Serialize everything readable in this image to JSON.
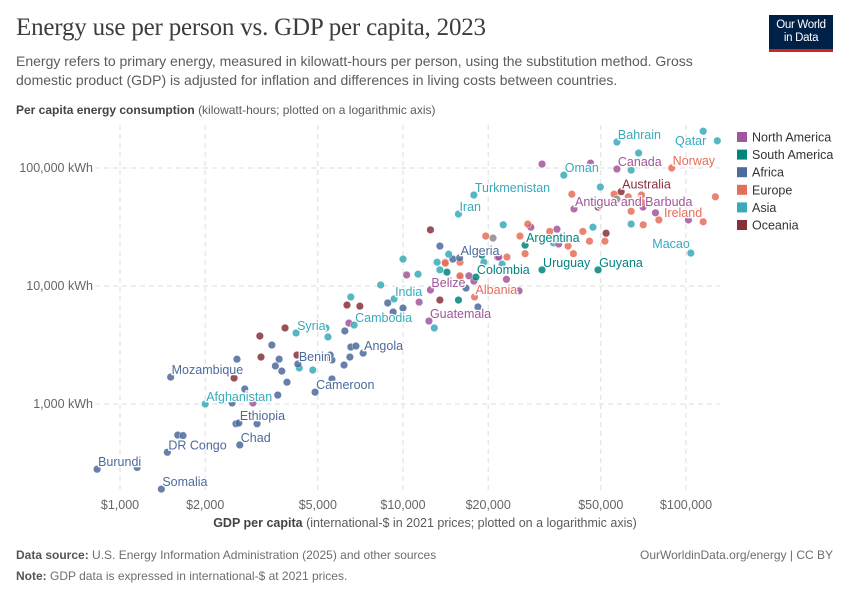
{
  "header": {
    "title": "Energy use per person vs. GDP per capita, 2023",
    "subtitle": "Energy refers to primary energy, measured in kilowatt-hours per person, using the substitution method. Gross domestic product (GDP) is adjusted for inflation and differences in living costs between countries.",
    "logo_text": "Our World in Data"
  },
  "footer": {
    "source_label": "Data source:",
    "source": "U.S. Energy Information Administration (2025) and other sources",
    "note_label": "Note:",
    "note": "GDP data is expressed in international-$ at 2021 prices.",
    "credit": "OurWorldinData.org/energy | CC BY"
  },
  "chart_data": {
    "type": "scatter",
    "title": "Energy use per person vs. GDP per capita, 2023",
    "ylabel_bold": "Per capita energy consumption",
    "ylabel_rest": "(kilowatt-hours; plotted on a logarithmic axis)",
    "xlabel_bold": "GDP per capita",
    "xlabel_rest": "(international-$ in 2021 prices; plotted on a logarithmic axis)",
    "x_scale": "log",
    "y_scale": "log",
    "xlim": [
      740,
      135000
    ],
    "ylim": [
      175,
      240000
    ],
    "x_ticks": [
      {
        "v": 1000,
        "t": "$1,000"
      },
      {
        "v": 2000,
        "t": "$2,000"
      },
      {
        "v": 5000,
        "t": "$5,000"
      },
      {
        "v": 10000,
        "t": "$10,000"
      },
      {
        "v": 20000,
        "t": "$20,000"
      },
      {
        "v": 50000,
        "t": "$50,000"
      },
      {
        "v": 100000,
        "t": "$100,000"
      }
    ],
    "y_ticks": [
      {
        "v": 1000,
        "t": "1,000 kWh"
      },
      {
        "v": 10000,
        "t": "10,000 kWh"
      },
      {
        "v": 100000,
        "t": "100,000 kWh"
      }
    ],
    "grid": true,
    "legend_position": "right",
    "legend": [
      {
        "name": "North America",
        "color": "#a2559c"
      },
      {
        "name": "South America",
        "color": "#00847e"
      },
      {
        "name": "Africa",
        "color": "#4c6a9c"
      },
      {
        "name": "Europe",
        "color": "#e56e5a"
      },
      {
        "name": "Asia",
        "color": "#38aaba"
      },
      {
        "name": "Oceania",
        "color": "#883039"
      }
    ],
    "other_color": "#8c8c8c",
    "points": [
      {
        "label": "Burundi",
        "region": "Africa",
        "gdp": 830,
        "energy": 280
      },
      {
        "label": "Somalia",
        "region": "Africa",
        "gdp": 1400,
        "energy": 190
      },
      {
        "label": "DR Congo",
        "region": "Africa",
        "gdp": 1470,
        "energy": 390
      },
      {
        "label": "Chad",
        "region": "Africa",
        "gdp": 2650,
        "energy": 450
      },
      {
        "label": "Ethiopia",
        "region": "Africa",
        "gdp": 2630,
        "energy": 690
      },
      {
        "label": "Afghanistan",
        "region": "Asia",
        "gdp": 2000,
        "energy": 1000
      },
      {
        "label": "Mozambique",
        "region": "Africa",
        "gdp": 1510,
        "energy": 1690
      },
      {
        "label": "Benin",
        "region": "Africa",
        "gdp": 4250,
        "energy": 2180
      },
      {
        "label": "Cameroon",
        "region": "Africa",
        "gdp": 4890,
        "energy": 1260
      },
      {
        "label": "Angola",
        "region": "Africa",
        "gdp": 7230,
        "energy": 2700
      },
      {
        "label": "Syria",
        "region": "Asia",
        "gdp": 4190,
        "energy": 4000
      },
      {
        "label": "Cambodia",
        "region": "Asia",
        "gdp": 6720,
        "energy": 4670
      },
      {
        "label": "India",
        "region": "Asia",
        "gdp": 9300,
        "energy": 7770
      },
      {
        "label": "Guatemala",
        "region": "North America",
        "gdp": 12350,
        "energy": 5050
      },
      {
        "label": "Belize",
        "region": "North America",
        "gdp": 12500,
        "energy": 9250
      },
      {
        "label": "Albania",
        "region": "Europe",
        "gdp": 17900,
        "energy": 8070
      },
      {
        "label": "Colombia",
        "region": "South America",
        "gdp": 18100,
        "energy": 11900
      },
      {
        "label": "Algeria",
        "region": "Africa",
        "gdp": 15850,
        "energy": 17300
      },
      {
        "label": "Iran",
        "region": "Asia",
        "gdp": 15700,
        "energy": 40700
      },
      {
        "label": "Turkmenistan",
        "region": "Asia",
        "gdp": 17800,
        "energy": 59000
      },
      {
        "label": "Argentina",
        "region": "South America",
        "gdp": 27000,
        "energy": 22200
      },
      {
        "label": "Uruguay",
        "region": "South America",
        "gdp": 31000,
        "energy": 13700
      },
      {
        "label": "Guyana",
        "region": "South America",
        "gdp": 48900,
        "energy": 13700
      },
      {
        "label": "Antigua and Barbuda",
        "region": "North America",
        "gdp": 40200,
        "energy": 45000
      },
      {
        "label": "Oman",
        "region": "Asia",
        "gdp": 37000,
        "energy": 87000
      },
      {
        "label": "Bahrain",
        "region": "Asia",
        "gdp": 57000,
        "energy": 166000
      },
      {
        "label": "Qatar",
        "region": "Asia",
        "gdp": 129000,
        "energy": 170000
      },
      {
        "label": "Canada",
        "region": "North America",
        "gdp": 57000,
        "energy": 98000
      },
      {
        "label": "Norway",
        "region": "Europe",
        "gdp": 89000,
        "energy": 100000
      },
      {
        "label": "Australia",
        "region": "Oceania",
        "gdp": 59000,
        "energy": 63000
      },
      {
        "label": "Ireland",
        "region": "Europe",
        "gdp": 115000,
        "energy": 35000
      },
      {
        "label": "Macao",
        "region": "Asia",
        "gdp": 104000,
        "energy": 19000
      },
      {
        "region": "Asia",
        "gdp": 115000,
        "energy": 205000
      },
      {
        "region": "Africa",
        "gdp": 1150,
        "energy": 290
      },
      {
        "region": "Africa",
        "gdp": 1600,
        "energy": 545
      },
      {
        "region": "Africa",
        "gdp": 1670,
        "energy": 540
      },
      {
        "region": "Africa",
        "gdp": 2570,
        "energy": 680
      },
      {
        "region": "Africa",
        "gdp": 2590,
        "energy": 2400
      },
      {
        "region": "Africa",
        "gdp": 3440,
        "energy": 3160
      },
      {
        "region": "Africa",
        "gdp": 3540,
        "energy": 2100
      },
      {
        "region": "Africa",
        "gdp": 3730,
        "energy": 1900
      },
      {
        "region": "Africa",
        "gdp": 3890,
        "energy": 1530
      },
      {
        "region": "Africa",
        "gdp": 3650,
        "energy": 2400
      },
      {
        "region": "Africa",
        "gdp": 3610,
        "energy": 1190
      },
      {
        "region": "Africa",
        "gdp": 2490,
        "energy": 1020
      },
      {
        "region": "Africa",
        "gdp": 2760,
        "energy": 1340
      },
      {
        "region": "Africa",
        "gdp": 3050,
        "energy": 680
      },
      {
        "region": "Africa",
        "gdp": 6230,
        "energy": 4160
      },
      {
        "region": "Africa",
        "gdp": 6540,
        "energy": 3040
      },
      {
        "region": "Africa",
        "gdp": 6820,
        "energy": 3100
      },
      {
        "region": "Africa",
        "gdp": 6490,
        "energy": 2500
      },
      {
        "region": "Africa",
        "gdp": 6190,
        "energy": 2140
      },
      {
        "region": "Africa",
        "gdp": 5610,
        "energy": 2360
      },
      {
        "region": "Africa",
        "gdp": 5530,
        "energy": 2600
      },
      {
        "region": "Africa",
        "gdp": 5610,
        "energy": 1630
      },
      {
        "region": "Africa",
        "gdp": 8830,
        "energy": 7180
      },
      {
        "region": "Africa",
        "gdp": 9230,
        "energy": 6020
      },
      {
        "region": "Africa",
        "gdp": 10000,
        "energy": 6500
      },
      {
        "region": "Africa",
        "gdp": 13500,
        "energy": 21800
      },
      {
        "region": "Africa",
        "gdp": 15000,
        "energy": 16900
      },
      {
        "region": "Africa",
        "gdp": 16700,
        "energy": 9600
      },
      {
        "region": "Africa",
        "gdp": 18400,
        "energy": 6640
      },
      {
        "region": "Asia",
        "gdp": 4800,
        "energy": 1940
      },
      {
        "region": "Asia",
        "gdp": 4300,
        "energy": 2020
      },
      {
        "region": "Asia",
        "gdp": 5340,
        "energy": 2450
      },
      {
        "region": "Asia",
        "gdp": 5430,
        "energy": 3700
      },
      {
        "region": "Asia",
        "gdp": 5340,
        "energy": 4410
      },
      {
        "region": "Asia",
        "gdp": 6540,
        "energy": 8070
      },
      {
        "region": "Asia",
        "gdp": 8340,
        "energy": 10200
      },
      {
        "region": "Asia",
        "gdp": 10000,
        "energy": 16900
      },
      {
        "region": "Asia",
        "gdp": 11300,
        "energy": 12600
      },
      {
        "region": "Asia",
        "gdp": 12900,
        "energy": 4410
      },
      {
        "region": "Asia",
        "gdp": 13200,
        "energy": 15900
      },
      {
        "region": "Asia",
        "gdp": 13500,
        "energy": 13700
      },
      {
        "region": "Asia",
        "gdp": 14500,
        "energy": 18600
      },
      {
        "region": "Asia",
        "gdp": 19300,
        "energy": 15900
      },
      {
        "region": "Asia",
        "gdp": 49800,
        "energy": 69000
      },
      {
        "region": "Asia",
        "gdp": 68000,
        "energy": 134000
      },
      {
        "region": "Asia",
        "gdp": 64000,
        "energy": 96000
      },
      {
        "region": "Asia",
        "gdp": 64000,
        "energy": 33500
      },
      {
        "region": "Asia",
        "gdp": 46900,
        "energy": 31500
      },
      {
        "region": "Asia",
        "gdp": 22600,
        "energy": 33000
      },
      {
        "region": "Asia",
        "gdp": 34000,
        "energy": 23200
      },
      {
        "region": "Asia",
        "gdp": 22400,
        "energy": 15300
      },
      {
        "region": "Oceania",
        "gdp": 3830,
        "energy": 4410
      },
      {
        "region": "Oceania",
        "gdp": 3120,
        "energy": 3770
      },
      {
        "region": "Oceania",
        "gdp": 3150,
        "energy": 2500
      },
      {
        "region": "Oceania",
        "gdp": 2530,
        "energy": 1660
      },
      {
        "region": "Oceania",
        "gdp": 4220,
        "energy": 2600
      },
      {
        "region": "Oceania",
        "gdp": 6340,
        "energy": 6900
      },
      {
        "region": "Oceania",
        "gdp": 7040,
        "energy": 6750
      },
      {
        "region": "Oceania",
        "gdp": 12500,
        "energy": 29900
      },
      {
        "region": "Oceania",
        "gdp": 13500,
        "energy": 7600
      },
      {
        "region": "Oceania",
        "gdp": 48900,
        "energy": 46700
      },
      {
        "region": "Oceania",
        "gdp": 52200,
        "energy": 28000
      },
      {
        "region": "North America",
        "gdp": 2950,
        "energy": 1020
      },
      {
        "region": "North America",
        "gdp": 6440,
        "energy": 4850
      },
      {
        "region": "North America",
        "gdp": 10300,
        "energy": 12400
      },
      {
        "region": "North America",
        "gdp": 11400,
        "energy": 7300
      },
      {
        "region": "North America",
        "gdp": 17100,
        "energy": 12200
      },
      {
        "region": "North America",
        "gdp": 17800,
        "energy": 11000
      },
      {
        "region": "North America",
        "gdp": 21600,
        "energy": 17600
      },
      {
        "region": "North America",
        "gdp": 31000,
        "energy": 108000
      },
      {
        "region": "North America",
        "gdp": 46000,
        "energy": 110000
      },
      {
        "region": "North America",
        "gdp": 70500,
        "energy": 46700
      },
      {
        "region": "North America",
        "gdp": 78000,
        "energy": 41700
      },
      {
        "region": "North America",
        "gdp": 102000,
        "energy": 36300
      },
      {
        "region": "North America",
        "gdp": 35000,
        "energy": 30300
      },
      {
        "region": "North America",
        "gdp": 35500,
        "energy": 22700
      },
      {
        "region": "North America",
        "gdp": 28300,
        "energy": 31500
      },
      {
        "region": "North America",
        "gdp": 23200,
        "energy": 11400
      },
      {
        "region": "North America",
        "gdp": 25700,
        "energy": 9100
      },
      {
        "region": "North America",
        "gdp": 21800,
        "energy": 17600
      },
      {
        "region": "South America",
        "gdp": 14300,
        "energy": 13100
      },
      {
        "region": "South America",
        "gdp": 15700,
        "energy": 7600
      },
      {
        "region": "South America",
        "gdp": 19000,
        "energy": 18300
      },
      {
        "region": "Europe",
        "gdp": 19600,
        "energy": 26500
      },
      {
        "region": "Europe",
        "gdp": 14100,
        "energy": 15900
      },
      {
        "region": "Europe",
        "gdp": 15900,
        "energy": 11900
      },
      {
        "region": "Europe",
        "gdp": 15900,
        "energy": 15900
      },
      {
        "region": "Europe",
        "gdp": 39500,
        "energy": 60000
      },
      {
        "region": "Europe",
        "gdp": 55700,
        "energy": 60000
      },
      {
        "region": "Europe",
        "gdp": 62500,
        "energy": 57000
      },
      {
        "region": "Europe",
        "gdp": 69600,
        "energy": 59000
      },
      {
        "region": "Europe",
        "gdp": 69600,
        "energy": 51500
      },
      {
        "region": "Europe",
        "gdp": 64000,
        "energy": 43000
      },
      {
        "region": "Europe",
        "gdp": 80200,
        "energy": 36300
      },
      {
        "region": "Europe",
        "gdp": 127000,
        "energy": 57000
      },
      {
        "region": "Europe",
        "gdp": 70600,
        "energy": 33000
      },
      {
        "region": "Europe",
        "gdp": 51700,
        "energy": 24000
      },
      {
        "region": "Europe",
        "gdp": 45600,
        "energy": 24000
      },
      {
        "region": "Europe",
        "gdp": 43200,
        "energy": 29000
      },
      {
        "region": "Europe",
        "gdp": 38300,
        "energy": 21800
      },
      {
        "region": "Europe",
        "gdp": 40000,
        "energy": 18800
      },
      {
        "region": "Europe",
        "gdp": 33000,
        "energy": 29000
      },
      {
        "region": "Europe",
        "gdp": 27600,
        "energy": 33500
      },
      {
        "region": "Europe",
        "gdp": 25900,
        "energy": 26500
      },
      {
        "region": "Europe",
        "gdp": 27000,
        "energy": 18800
      },
      {
        "region": "Europe",
        "gdp": 23300,
        "energy": 17600
      },
      {
        "region": "Europe",
        "gdp": 14100,
        "energy": 15600
      },
      {
        "region": "Europe",
        "gdp": 15900,
        "energy": 12200
      },
      {
        "gdp": 57000,
        "energy": 54500
      },
      {
        "gdp": 20800,
        "energy": 25500
      }
    ]
  }
}
